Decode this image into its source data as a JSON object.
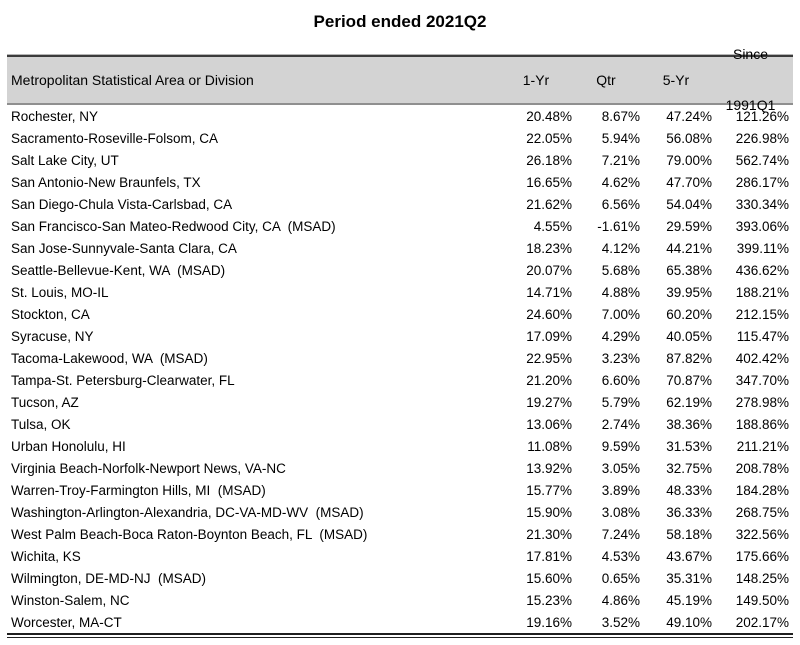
{
  "title": "Period ended 2021Q2",
  "colors": {
    "header_bg": "#d3d3d3",
    "top_rule": "#3b3b3b",
    "header_bottom_rule": "#8f8f8f",
    "bottom_rule": "#1f1f1f",
    "text": "#000000",
    "background": "#ffffff"
  },
  "header": {
    "name": "Metropolitan Statistical Area or Division",
    "col1": "1-Yr",
    "col2": "Qtr",
    "col3": "5-Yr",
    "col4_line1": "Since",
    "col4_line2": "1991Q1"
  },
  "rows": [
    {
      "name": "Rochester, NY",
      "one_yr": "20.48%",
      "qtr": "8.67%",
      "five_yr": "47.24%",
      "since": "121.26%"
    },
    {
      "name": "Sacramento-Roseville-Folsom, CA",
      "one_yr": "22.05%",
      "qtr": "5.94%",
      "five_yr": "56.08%",
      "since": "226.98%"
    },
    {
      "name": "Salt Lake City, UT",
      "one_yr": "26.18%",
      "qtr": "7.21%",
      "five_yr": "79.00%",
      "since": "562.74%"
    },
    {
      "name": "San Antonio-New Braunfels, TX",
      "one_yr": "16.65%",
      "qtr": "4.62%",
      "five_yr": "47.70%",
      "since": "286.17%"
    },
    {
      "name": "San Diego-Chula Vista-Carlsbad, CA",
      "one_yr": "21.62%",
      "qtr": "6.56%",
      "five_yr": "54.04%",
      "since": "330.34%"
    },
    {
      "name": "San Francisco-San Mateo-Redwood City, CA  (MSAD)",
      "one_yr": "4.55%",
      "qtr": "-1.61%",
      "five_yr": "29.59%",
      "since": "393.06%"
    },
    {
      "name": "San Jose-Sunnyvale-Santa Clara, CA",
      "one_yr": "18.23%",
      "qtr": "4.12%",
      "five_yr": "44.21%",
      "since": "399.11%"
    },
    {
      "name": "Seattle-Bellevue-Kent, WA  (MSAD)",
      "one_yr": "20.07%",
      "qtr": "5.68%",
      "five_yr": "65.38%",
      "since": "436.62%"
    },
    {
      "name": "St. Louis, MO-IL",
      "one_yr": "14.71%",
      "qtr": "4.88%",
      "five_yr": "39.95%",
      "since": "188.21%"
    },
    {
      "name": "Stockton, CA",
      "one_yr": "24.60%",
      "qtr": "7.00%",
      "five_yr": "60.20%",
      "since": "212.15%"
    },
    {
      "name": "Syracuse, NY",
      "one_yr": "17.09%",
      "qtr": "4.29%",
      "five_yr": "40.05%",
      "since": "115.47%"
    },
    {
      "name": "Tacoma-Lakewood, WA  (MSAD)",
      "one_yr": "22.95%",
      "qtr": "3.23%",
      "five_yr": "87.82%",
      "since": "402.42%"
    },
    {
      "name": "Tampa-St. Petersburg-Clearwater, FL",
      "one_yr": "21.20%",
      "qtr": "6.60%",
      "five_yr": "70.87%",
      "since": "347.70%"
    },
    {
      "name": "Tucson, AZ",
      "one_yr": "19.27%",
      "qtr": "5.79%",
      "five_yr": "62.19%",
      "since": "278.98%"
    },
    {
      "name": "Tulsa, OK",
      "one_yr": "13.06%",
      "qtr": "2.74%",
      "five_yr": "38.36%",
      "since": "188.86%"
    },
    {
      "name": "Urban Honolulu, HI",
      "one_yr": "11.08%",
      "qtr": "9.59%",
      "five_yr": "31.53%",
      "since": "211.21%"
    },
    {
      "name": "Virginia Beach-Norfolk-Newport News, VA-NC",
      "one_yr": "13.92%",
      "qtr": "3.05%",
      "five_yr": "32.75%",
      "since": "208.78%"
    },
    {
      "name": "Warren-Troy-Farmington Hills, MI  (MSAD)",
      "one_yr": "15.77%",
      "qtr": "3.89%",
      "five_yr": "48.33%",
      "since": "184.28%"
    },
    {
      "name": "Washington-Arlington-Alexandria, DC-VA-MD-WV  (MSAD)",
      "one_yr": "15.90%",
      "qtr": "3.08%",
      "five_yr": "36.33%",
      "since": "268.75%"
    },
    {
      "name": "West Palm Beach-Boca Raton-Boynton Beach, FL  (MSAD)",
      "one_yr": "21.30%",
      "qtr": "7.24%",
      "five_yr": "58.18%",
      "since": "322.56%"
    },
    {
      "name": "Wichita, KS",
      "one_yr": "17.81%",
      "qtr": "4.53%",
      "five_yr": "43.67%",
      "since": "175.66%"
    },
    {
      "name": "Wilmington, DE-MD-NJ  (MSAD)",
      "one_yr": "15.60%",
      "qtr": "0.65%",
      "five_yr": "35.31%",
      "since": "148.25%"
    },
    {
      "name": "Winston-Salem, NC",
      "one_yr": "15.23%",
      "qtr": "4.86%",
      "five_yr": "45.19%",
      "since": "149.50%"
    },
    {
      "name": "Worcester, MA-CT",
      "one_yr": "19.16%",
      "qtr": "3.52%",
      "five_yr": "49.10%",
      "since": "202.17%"
    }
  ],
  "chart_data": {
    "type": "table",
    "title": "Period ended 2021Q2",
    "columns": [
      "Metropolitan Statistical Area or Division",
      "1-Yr",
      "Qtr",
      "5-Yr",
      "Since 1991Q1"
    ],
    "rows": [
      [
        "Rochester, NY",
        20.48,
        8.67,
        47.24,
        121.26
      ],
      [
        "Sacramento-Roseville-Folsom, CA",
        22.05,
        5.94,
        56.08,
        226.98
      ],
      [
        "Salt Lake City, UT",
        26.18,
        7.21,
        79.0,
        562.74
      ],
      [
        "San Antonio-New Braunfels, TX",
        16.65,
        4.62,
        47.7,
        286.17
      ],
      [
        "San Diego-Chula Vista-Carlsbad, CA",
        21.62,
        6.56,
        54.04,
        330.34
      ],
      [
        "San Francisco-San Mateo-Redwood City, CA (MSAD)",
        4.55,
        -1.61,
        29.59,
        393.06
      ],
      [
        "San Jose-Sunnyvale-Santa Clara, CA",
        18.23,
        4.12,
        44.21,
        399.11
      ],
      [
        "Seattle-Bellevue-Kent, WA (MSAD)",
        20.07,
        5.68,
        65.38,
        436.62
      ],
      [
        "St. Louis, MO-IL",
        14.71,
        4.88,
        39.95,
        188.21
      ],
      [
        "Stockton, CA",
        24.6,
        7.0,
        60.2,
        212.15
      ],
      [
        "Syracuse, NY",
        17.09,
        4.29,
        40.05,
        115.47
      ],
      [
        "Tacoma-Lakewood, WA (MSAD)",
        22.95,
        3.23,
        87.82,
        402.42
      ],
      [
        "Tampa-St. Petersburg-Clearwater, FL",
        21.2,
        6.6,
        70.87,
        347.7
      ],
      [
        "Tucson, AZ",
        19.27,
        5.79,
        62.19,
        278.98
      ],
      [
        "Tulsa, OK",
        13.06,
        2.74,
        38.36,
        188.86
      ],
      [
        "Urban Honolulu, HI",
        11.08,
        9.59,
        31.53,
        211.21
      ],
      [
        "Virginia Beach-Norfolk-Newport News, VA-NC",
        13.92,
        3.05,
        32.75,
        208.78
      ],
      [
        "Warren-Troy-Farmington Hills, MI (MSAD)",
        15.77,
        3.89,
        48.33,
        184.28
      ],
      [
        "Washington-Arlington-Alexandria, DC-VA-MD-WV (MSAD)",
        15.9,
        3.08,
        36.33,
        268.75
      ],
      [
        "West Palm Beach-Boca Raton-Boynton Beach, FL (MSAD)",
        21.3,
        7.24,
        58.18,
        322.56
      ],
      [
        "Wichita, KS",
        17.81,
        4.53,
        43.67,
        175.66
      ],
      [
        "Wilmington, DE-MD-NJ (MSAD)",
        15.6,
        0.65,
        35.31,
        148.25
      ],
      [
        "Winston-Salem, NC",
        15.23,
        4.86,
        45.19,
        149.5
      ],
      [
        "Worcester, MA-CT",
        19.16,
        3.52,
        49.1,
        202.17
      ]
    ],
    "units": "percent"
  }
}
